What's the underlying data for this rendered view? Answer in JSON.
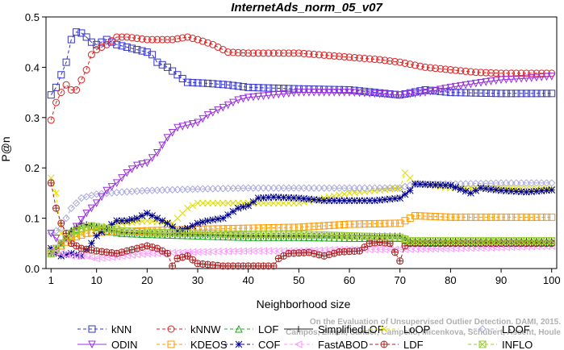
{
  "chart_data": {
    "type": "line",
    "title": "InternetAds_norm_05_v07",
    "xlabel": "Neighborhood size",
    "ylabel": "P@n",
    "xlim": [
      0,
      101
    ],
    "ylim": [
      0,
      0.5
    ],
    "xticks": [
      1,
      10,
      20,
      30,
      40,
      50,
      60,
      70,
      80,
      90,
      100
    ],
    "yticks": [
      0.0,
      0.1,
      0.2,
      0.3,
      0.4,
      0.5
    ],
    "grid": false,
    "legend_position": "bottom",
    "watermark": "Campos, Zimek, Sander, Campello, Micenkova, Schubert, Assent, Houle\nOn the Evaluation of Unsupervised Outlier Detection. DAMI, 2015.",
    "series": [
      {
        "name": "kNN",
        "color": "#3333cc",
        "marker": "square",
        "dash": "4,3",
        "points": [
          [
            1,
            0.345
          ],
          [
            2,
            0.36
          ],
          [
            3,
            0.385
          ],
          [
            4,
            0.41
          ],
          [
            5,
            0.455
          ],
          [
            6,
            0.47
          ],
          [
            7,
            0.468
          ],
          [
            8,
            0.46
          ],
          [
            9,
            0.45
          ],
          [
            10,
            0.445
          ],
          [
            12,
            0.455
          ],
          [
            14,
            0.445
          ],
          [
            16,
            0.44
          ],
          [
            18,
            0.435
          ],
          [
            20,
            0.43
          ],
          [
            21,
            0.425
          ],
          [
            22,
            0.41
          ],
          [
            24,
            0.4
          ],
          [
            26,
            0.385
          ],
          [
            28,
            0.37
          ],
          [
            32,
            0.368
          ],
          [
            36,
            0.365
          ],
          [
            40,
            0.36
          ],
          [
            50,
            0.357
          ],
          [
            60,
            0.355
          ],
          [
            70,
            0.345
          ],
          [
            75,
            0.355
          ],
          [
            80,
            0.35
          ],
          [
            90,
            0.348
          ],
          [
            100,
            0.348
          ]
        ]
      },
      {
        "name": "kNNW",
        "color": "#dd2222",
        "marker": "circle",
        "dash": "4,3",
        "points": [
          [
            1,
            0.295
          ],
          [
            2,
            0.33
          ],
          [
            3,
            0.35
          ],
          [
            4,
            0.365
          ],
          [
            5,
            0.355
          ],
          [
            6,
            0.355
          ],
          [
            7,
            0.375
          ],
          [
            8,
            0.395
          ],
          [
            9,
            0.425
          ],
          [
            10,
            0.435
          ],
          [
            12,
            0.445
          ],
          [
            14,
            0.46
          ],
          [
            16,
            0.46
          ],
          [
            20,
            0.455
          ],
          [
            25,
            0.455
          ],
          [
            28,
            0.46
          ],
          [
            30,
            0.455
          ],
          [
            33,
            0.445
          ],
          [
            36,
            0.43
          ],
          [
            40,
            0.428
          ],
          [
            50,
            0.428
          ],
          [
            60,
            0.42
          ],
          [
            66,
            0.415
          ],
          [
            70,
            0.41
          ],
          [
            75,
            0.4
          ],
          [
            80,
            0.395
          ],
          [
            85,
            0.39
          ],
          [
            90,
            0.388
          ],
          [
            100,
            0.388
          ]
        ]
      },
      {
        "name": "LOF",
        "color": "#22aa22",
        "marker": "triangle-up",
        "dash": "4,3",
        "points": [
          [
            1,
            0.03
          ],
          [
            3,
            0.045
          ],
          [
            5,
            0.075
          ],
          [
            7,
            0.08
          ],
          [
            9,
            0.085
          ],
          [
            12,
            0.075
          ],
          [
            15,
            0.07
          ],
          [
            20,
            0.068
          ],
          [
            30,
            0.065
          ],
          [
            40,
            0.062
          ],
          [
            50,
            0.062
          ],
          [
            60,
            0.06
          ],
          [
            70,
            0.06
          ],
          [
            72,
            0.052
          ],
          [
            80,
            0.052
          ],
          [
            90,
            0.052
          ],
          [
            100,
            0.052
          ]
        ]
      },
      {
        "name": "SimplifiedLOF",
        "color": "#222222",
        "marker": "plus",
        "dash": "",
        "points": [
          [
            1,
            0.03
          ],
          [
            3,
            0.05
          ],
          [
            5,
            0.075
          ],
          [
            7,
            0.09
          ],
          [
            9,
            0.085
          ],
          [
            12,
            0.078
          ],
          [
            15,
            0.072
          ],
          [
            20,
            0.07
          ],
          [
            30,
            0.068
          ],
          [
            40,
            0.065
          ],
          [
            50,
            0.065
          ],
          [
            60,
            0.065
          ],
          [
            70,
            0.065
          ],
          [
            72,
            0.055
          ],
          [
            80,
            0.055
          ],
          [
            90,
            0.055
          ],
          [
            100,
            0.055
          ]
        ]
      },
      {
        "name": "LoOP",
        "color": "#dddd00",
        "marker": "x",
        "dash": "4,3",
        "points": [
          [
            1,
            0.18
          ],
          [
            2,
            0.15
          ],
          [
            3,
            0.07
          ],
          [
            5,
            0.06
          ],
          [
            8,
            0.075
          ],
          [
            10,
            0.08
          ],
          [
            15,
            0.09
          ],
          [
            20,
            0.095
          ],
          [
            25,
            0.09
          ],
          [
            26,
            0.1
          ],
          [
            28,
            0.12
          ],
          [
            30,
            0.13
          ],
          [
            35,
            0.13
          ],
          [
            40,
            0.13
          ],
          [
            50,
            0.13
          ],
          [
            55,
            0.14
          ],
          [
            60,
            0.15
          ],
          [
            65,
            0.155
          ],
          [
            70,
            0.16
          ],
          [
            71,
            0.19
          ],
          [
            73,
            0.17
          ],
          [
            80,
            0.16
          ],
          [
            90,
            0.16
          ],
          [
            100,
            0.158
          ]
        ]
      },
      {
        "name": "LDOF",
        "color": "#aaaadd",
        "marker": "diamond",
        "dash": "4,3",
        "points": [
          [
            1,
            0.07
          ],
          [
            3,
            0.08
          ],
          [
            5,
            0.12
          ],
          [
            7,
            0.14
          ],
          [
            10,
            0.148
          ],
          [
            15,
            0.152
          ],
          [
            20,
            0.155
          ],
          [
            30,
            0.158
          ],
          [
            40,
            0.16
          ],
          [
            50,
            0.16
          ],
          [
            60,
            0.16
          ],
          [
            70,
            0.16
          ],
          [
            73,
            0.168
          ],
          [
            80,
            0.168
          ],
          [
            90,
            0.17
          ],
          [
            100,
            0.17
          ]
        ]
      },
      {
        "name": "ODIN",
        "color": "#9933dd",
        "marker": "triangle-down",
        "dash": "",
        "points": [
          [
            1,
            0.07
          ],
          [
            2,
            0.06
          ],
          [
            3,
            0.05
          ],
          [
            5,
            0.07
          ],
          [
            8,
            0.11
          ],
          [
            10,
            0.13
          ],
          [
            12,
            0.155
          ],
          [
            14,
            0.17
          ],
          [
            16,
            0.19
          ],
          [
            18,
            0.205
          ],
          [
            20,
            0.21
          ],
          [
            22,
            0.23
          ],
          [
            24,
            0.26
          ],
          [
            26,
            0.28
          ],
          [
            28,
            0.285
          ],
          [
            30,
            0.29
          ],
          [
            32,
            0.305
          ],
          [
            35,
            0.32
          ],
          [
            38,
            0.335
          ],
          [
            40,
            0.34
          ],
          [
            45,
            0.345
          ],
          [
            50,
            0.35
          ],
          [
            60,
            0.35
          ],
          [
            70,
            0.345
          ],
          [
            75,
            0.35
          ],
          [
            80,
            0.36
          ],
          [
            85,
            0.368
          ],
          [
            90,
            0.375
          ],
          [
            95,
            0.378
          ],
          [
            100,
            0.382
          ]
        ]
      },
      {
        "name": "KDEOS",
        "color": "#ff9900",
        "marker": "square",
        "dash": "4,3",
        "points": [
          [
            1,
            0.035
          ],
          [
            3,
            0.045
          ],
          [
            5,
            0.06
          ],
          [
            8,
            0.07
          ],
          [
            10,
            0.072
          ],
          [
            20,
            0.075
          ],
          [
            30,
            0.078
          ],
          [
            40,
            0.08
          ],
          [
            50,
            0.082
          ],
          [
            60,
            0.088
          ],
          [
            70,
            0.09
          ],
          [
            72,
            0.1
          ],
          [
            73,
            0.105
          ],
          [
            80,
            0.102
          ],
          [
            90,
            0.102
          ],
          [
            100,
            0.102
          ]
        ]
      },
      {
        "name": "COF",
        "color": "#000088",
        "marker": "asterisk",
        "dash": "4,3",
        "points": [
          [
            1,
            0.04
          ],
          [
            2,
            0.03
          ],
          [
            3,
            0.025
          ],
          [
            5,
            0.03
          ],
          [
            7,
            0.025
          ],
          [
            9,
            0.05
          ],
          [
            10,
            0.065
          ],
          [
            12,
            0.08
          ],
          [
            14,
            0.095
          ],
          [
            16,
            0.095
          ],
          [
            18,
            0.1
          ],
          [
            20,
            0.11
          ],
          [
            22,
            0.1
          ],
          [
            24,
            0.09
          ],
          [
            26,
            0.075
          ],
          [
            28,
            0.08
          ],
          [
            30,
            0.09
          ],
          [
            32,
            0.095
          ],
          [
            35,
            0.1
          ],
          [
            38,
            0.12
          ],
          [
            40,
            0.125
          ],
          [
            42,
            0.14
          ],
          [
            45,
            0.142
          ],
          [
            50,
            0.14
          ],
          [
            55,
            0.135
          ],
          [
            60,
            0.135
          ],
          [
            65,
            0.135
          ],
          [
            70,
            0.14
          ],
          [
            72,
            0.155
          ],
          [
            73,
            0.168
          ],
          [
            80,
            0.165
          ],
          [
            84,
            0.15
          ],
          [
            86,
            0.16
          ],
          [
            90,
            0.155
          ],
          [
            95,
            0.152
          ],
          [
            100,
            0.156
          ]
        ]
      },
      {
        "name": "FastABOD",
        "color": "#ff99ff",
        "marker": "triangle-left",
        "dash": "4,3",
        "points": [
          [
            1,
            0.035
          ],
          [
            3,
            0.03
          ],
          [
            5,
            0.025
          ],
          [
            8,
            0.025
          ],
          [
            10,
            0.02
          ],
          [
            15,
            0.025
          ],
          [
            20,
            0.03
          ],
          [
            30,
            0.033
          ],
          [
            40,
            0.035
          ],
          [
            50,
            0.035
          ],
          [
            60,
            0.038
          ],
          [
            70,
            0.038
          ],
          [
            80,
            0.04
          ],
          [
            90,
            0.042
          ],
          [
            100,
            0.045
          ]
        ]
      },
      {
        "name": "LDF",
        "color": "#aa2222",
        "marker": "circle-plus",
        "dash": "4,3",
        "points": [
          [
            1,
            0.17
          ],
          [
            2,
            0.12
          ],
          [
            3,
            0.09
          ],
          [
            4,
            0.07
          ],
          [
            5,
            0.05
          ],
          [
            7,
            0.04
          ],
          [
            10,
            0.035
          ],
          [
            14,
            0.03
          ],
          [
            18,
            0.04
          ],
          [
            20,
            0.045
          ],
          [
            22,
            0.04
          ],
          [
            24,
            0.03
          ],
          [
            25,
            0.005
          ],
          [
            26,
            0.02
          ],
          [
            28,
            0.025
          ],
          [
            30,
            0.01
          ],
          [
            35,
            0.005
          ],
          [
            40,
            0.005
          ],
          [
            45,
            0.005
          ],
          [
            46,
            0.02
          ],
          [
            48,
            0.03
          ],
          [
            52,
            0.032
          ],
          [
            55,
            0.025
          ],
          [
            58,
            0.033
          ],
          [
            62,
            0.035
          ],
          [
            64,
            0.05
          ],
          [
            66,
            0.052
          ],
          [
            68,
            0.05
          ],
          [
            70,
            0.015
          ],
          [
            71,
            0.045
          ],
          [
            72,
            0.05
          ],
          [
            80,
            0.05
          ],
          [
            90,
            0.05
          ],
          [
            100,
            0.05
          ]
        ]
      },
      {
        "name": "INFLO",
        "color": "#99cc33",
        "marker": "box-x",
        "dash": "4,3",
        "points": [
          [
            1,
            0.03
          ],
          [
            3,
            0.05
          ],
          [
            5,
            0.07
          ],
          [
            7,
            0.08
          ],
          [
            9,
            0.085
          ],
          [
            12,
            0.08
          ],
          [
            15,
            0.075
          ],
          [
            20,
            0.072
          ],
          [
            30,
            0.07
          ],
          [
            40,
            0.068
          ],
          [
            50,
            0.068
          ],
          [
            60,
            0.065
          ],
          [
            70,
            0.062
          ],
          [
            72,
            0.055
          ],
          [
            80,
            0.055
          ],
          [
            90,
            0.055
          ],
          [
            100,
            0.055
          ]
        ]
      }
    ]
  }
}
